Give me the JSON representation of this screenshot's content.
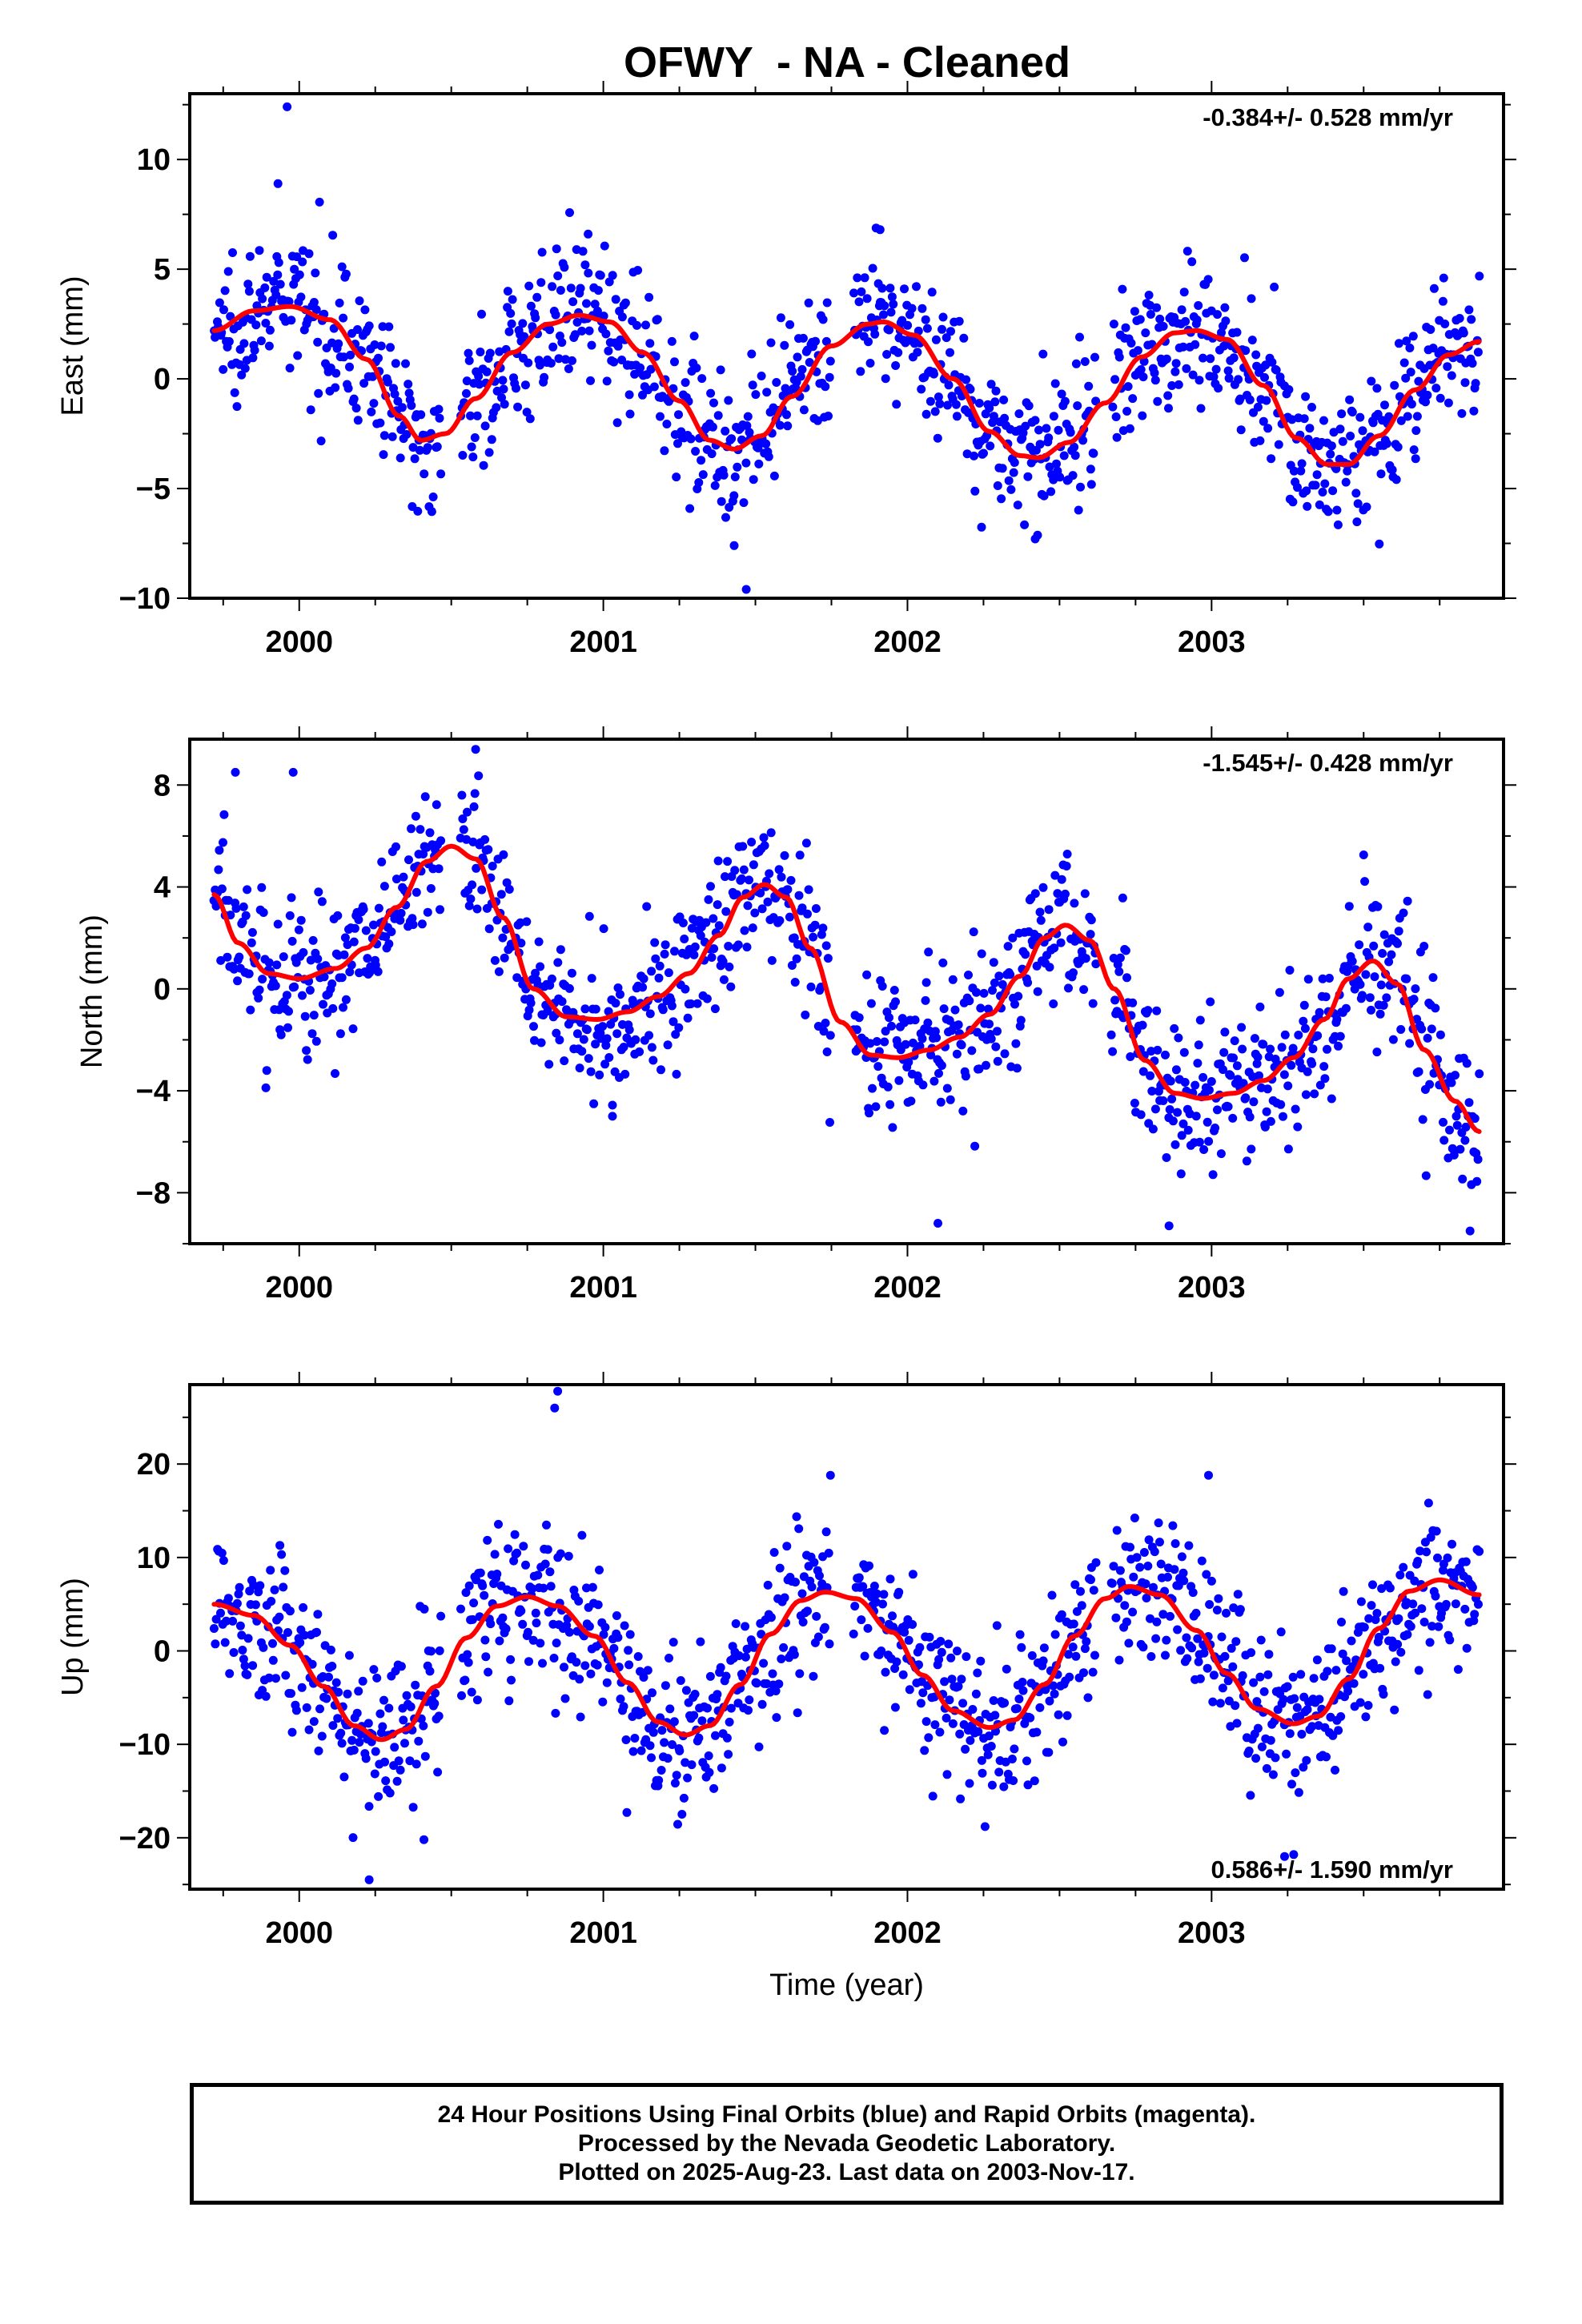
{
  "title": "OFWY  - NA - Cleaned",
  "colors": {
    "points": "#0000ff",
    "fit": "#ff0000",
    "axes": "#000000"
  },
  "chart_data": [
    {
      "type": "scatter",
      "panel": "East",
      "ylabel": "East (mm)",
      "xlabel": "",
      "ylim": [
        -10,
        13
      ],
      "xlim": [
        1999.64,
        2003.96
      ],
      "yticks": [
        10,
        5,
        0,
        -5,
        -10
      ],
      "yticklabels": [
        "10",
        "5",
        "0",
        "−5",
        "−10"
      ],
      "xticks": [
        2000,
        2001,
        2002,
        2003
      ],
      "xticklabels": [
        "2000",
        "2001",
        "2002",
        "2003"
      ],
      "rate_label": "-0.384+/- 0.528 mm/yr",
      "rate_position": "top-right",
      "grid": false,
      "series": [
        {
          "kind": "points",
          "range": [
            1999.72,
            2003.88
          ],
          "gaps": [
            [
              2000.47,
              2000.53
            ],
            [
              2001.75,
              2001.82
            ],
            [
              2002.62,
              2002.67
            ]
          ],
          "noise_sd": 1.6,
          "count": 1150,
          "outliers": [
            [
              1999.96,
              12.4
            ],
            [
              1999.93,
              8.9
            ],
            [
              2001.47,
              -9.6
            ],
            [
              2001.43,
              -7.6
            ],
            [
              2000.95,
              6.6
            ],
            [
              2001.91,
              6.8
            ],
            [
              2002.42,
              -7.3
            ]
          ]
        },
        {
          "kind": "fit",
          "x_start": 1999.72,
          "x_end": 2003.88,
          "points": [
            [
              1999.72,
              2.2
            ],
            [
              1999.85,
              3.1
            ],
            [
              1999.97,
              3.3
            ],
            [
              2000.1,
              2.7
            ],
            [
              2000.22,
              0.9
            ],
            [
              2000.33,
              -1.7
            ],
            [
              2000.4,
              -2.8
            ],
            [
              2000.48,
              -2.5
            ],
            [
              2000.58,
              -0.9
            ],
            [
              2000.7,
              1.2
            ],
            [
              2000.82,
              2.5
            ],
            [
              2000.92,
              2.9
            ],
            [
              2001.02,
              2.6
            ],
            [
              2001.13,
              1.2
            ],
            [
              2001.25,
              -1.0
            ],
            [
              2001.35,
              -2.8
            ],
            [
              2001.43,
              -3.2
            ],
            [
              2001.52,
              -2.6
            ],
            [
              2001.62,
              -0.8
            ],
            [
              2001.75,
              1.5
            ],
            [
              2001.87,
              2.5
            ],
            [
              2001.92,
              2.6
            ],
            [
              2002.02,
              2.0
            ],
            [
              2002.15,
              0.0
            ],
            [
              2002.27,
              -2.4
            ],
            [
              2002.37,
              -3.5
            ],
            [
              2002.43,
              -3.6
            ],
            [
              2002.53,
              -2.9
            ],
            [
              2002.65,
              -1.1
            ],
            [
              2002.77,
              1.0
            ],
            [
              2002.88,
              2.1
            ],
            [
              2002.95,
              2.2
            ],
            [
              2003.05,
              1.8
            ],
            [
              2003.17,
              -0.3
            ],
            [
              2003.28,
              -2.7
            ],
            [
              2003.38,
              -3.9
            ],
            [
              2003.45,
              -3.9
            ],
            [
              2003.55,
              -2.6
            ],
            [
              2003.67,
              -0.5
            ],
            [
              2003.78,
              1.1
            ],
            [
              2003.88,
              1.7
            ]
          ]
        }
      ]
    },
    {
      "type": "scatter",
      "panel": "North",
      "ylabel": "North (mm)",
      "xlabel": "",
      "ylim": [
        -10,
        9.8
      ],
      "xlim": [
        1999.64,
        2003.96
      ],
      "yticks": [
        8,
        4,
        0,
        -4,
        -8
      ],
      "yticklabels": [
        "8",
        "4",
        "0",
        "−4",
        "−8"
      ],
      "xticks": [
        2000,
        2001,
        2002,
        2003
      ],
      "xticklabels": [
        "2000",
        "2001",
        "2002",
        "2003"
      ],
      "rate_label": "-1.545+/- 0.428 mm/yr",
      "rate_position": "top-right",
      "grid": false,
      "series": [
        {
          "kind": "points",
          "range": [
            1999.72,
            2003.88
          ],
          "gaps": [
            [
              2000.47,
              2000.53
            ],
            [
              2001.75,
              2001.82
            ],
            [
              2002.62,
              2002.67
            ]
          ],
          "noise_sd": 1.5,
          "count": 1150,
          "outliers": [
            [
              2000.58,
              9.4
            ],
            [
              1999.79,
              8.5
            ],
            [
              1999.98,
              8.5
            ],
            [
              2002.1,
              -9.2
            ],
            [
              2003.85,
              -9.5
            ],
            [
              2002.86,
              -9.3
            ],
            [
              2001.03,
              -5.0
            ]
          ]
        },
        {
          "kind": "fit",
          "x_start": 1999.72,
          "x_end": 2003.88,
          "points": [
            [
              1999.72,
              3.7
            ],
            [
              1999.8,
              1.8
            ],
            [
              1999.9,
              0.6
            ],
            [
              2000.0,
              0.4
            ],
            [
              2000.12,
              0.8
            ],
            [
              2000.22,
              1.6
            ],
            [
              2000.32,
              3.2
            ],
            [
              2000.42,
              5.0
            ],
            [
              2000.5,
              5.6
            ],
            [
              2000.58,
              5.1
            ],
            [
              2000.67,
              2.8
            ],
            [
              2000.77,
              0.0
            ],
            [
              2000.88,
              -1.1
            ],
            [
              2000.98,
              -1.2
            ],
            [
              2001.08,
              -0.9
            ],
            [
              2001.18,
              -0.3
            ],
            [
              2001.28,
              0.6
            ],
            [
              2001.38,
              2.1
            ],
            [
              2001.46,
              3.6
            ],
            [
              2001.53,
              4.1
            ],
            [
              2001.6,
              3.6
            ],
            [
              2001.68,
              1.6
            ],
            [
              2001.78,
              -1.3
            ],
            [
              2001.88,
              -2.6
            ],
            [
              2001.97,
              -2.7
            ],
            [
              2002.07,
              -2.4
            ],
            [
              2002.17,
              -1.9
            ],
            [
              2002.27,
              -1.0
            ],
            [
              2002.37,
              0.5
            ],
            [
              2002.45,
              2.0
            ],
            [
              2002.52,
              2.5
            ],
            [
              2002.6,
              1.9
            ],
            [
              2002.68,
              0.0
            ],
            [
              2002.78,
              -2.8
            ],
            [
              2002.88,
              -4.1
            ],
            [
              2002.97,
              -4.3
            ],
            [
              2003.07,
              -4.1
            ],
            [
              2003.17,
              -3.6
            ],
            [
              2003.27,
              -2.7
            ],
            [
              2003.37,
              -1.2
            ],
            [
              2003.45,
              0.4
            ],
            [
              2003.53,
              1.1
            ],
            [
              2003.61,
              0.2
            ],
            [
              2003.7,
              -2.4
            ],
            [
              2003.8,
              -4.4
            ],
            [
              2003.88,
              -5.6
            ]
          ]
        }
      ]
    },
    {
      "type": "scatter",
      "panel": "Up",
      "ylabel": "Up (mm)",
      "xlabel": "Time (year)",
      "ylim": [
        -25.5,
        28.5
      ],
      "xlim": [
        1999.64,
        2003.96
      ],
      "yticks": [
        20,
        10,
        0,
        -10,
        -20
      ],
      "yticklabels": [
        "20",
        "10",
        "0",
        "−10",
        "−20"
      ],
      "xticks": [
        2000,
        2001,
        2002,
        2003
      ],
      "xticklabels": [
        "2000",
        "2001",
        "2002",
        "2003"
      ],
      "rate_label": "0.586+/- 1.590 mm/yr",
      "rate_position": "bottom-right",
      "grid": false,
      "series": [
        {
          "kind": "points",
          "range": [
            1999.72,
            2003.88
          ],
          "gaps": [
            [
              2000.47,
              2000.53
            ],
            [
              2001.75,
              2001.82
            ],
            [
              2002.62,
              2002.67
            ]
          ],
          "noise_sd": 4.2,
          "count": 1150,
          "outliers": [
            [
              2000.85,
              27.8
            ],
            [
              2000.84,
              26.0
            ],
            [
              2000.23,
              -24.5
            ],
            [
              2000.41,
              -20.2
            ],
            [
              2003.24,
              -22.0
            ],
            [
              2003.27,
              -21.8
            ],
            [
              2002.99,
              18.8
            ]
          ]
        },
        {
          "kind": "fit",
          "x_start": 1999.72,
          "x_end": 2003.88,
          "points": [
            [
              1999.72,
              5.0
            ],
            [
              1999.85,
              3.8
            ],
            [
              1999.97,
              0.6
            ],
            [
              2000.08,
              -3.8
            ],
            [
              2000.18,
              -8.0
            ],
            [
              2000.27,
              -9.5
            ],
            [
              2000.35,
              -8.4
            ],
            [
              2000.45,
              -3.8
            ],
            [
              2000.55,
              1.4
            ],
            [
              2000.65,
              4.8
            ],
            [
              2000.75,
              5.8
            ],
            [
              2000.85,
              4.8
            ],
            [
              2000.97,
              1.6
            ],
            [
              2001.08,
              -3.4
            ],
            [
              2001.18,
              -7.6
            ],
            [
              2001.27,
              -9.0
            ],
            [
              2001.35,
              -8.0
            ],
            [
              2001.45,
              -3.6
            ],
            [
              2001.55,
              1.8
            ],
            [
              2001.65,
              5.4
            ],
            [
              2001.73,
              6.3
            ],
            [
              2001.83,
              5.6
            ],
            [
              2001.95,
              2.0
            ],
            [
              2002.05,
              -2.6
            ],
            [
              2002.15,
              -6.4
            ],
            [
              2002.27,
              -8.2
            ],
            [
              2002.35,
              -7.4
            ],
            [
              2002.45,
              -3.6
            ],
            [
              2002.55,
              1.6
            ],
            [
              2002.65,
              5.6
            ],
            [
              2002.73,
              6.9
            ],
            [
              2002.83,
              6.0
            ],
            [
              2002.95,
              2.2
            ],
            [
              2003.05,
              -2.4
            ],
            [
              2003.15,
              -6.2
            ],
            [
              2003.27,
              -7.8
            ],
            [
              2003.35,
              -7.0
            ],
            [
              2003.45,
              -3.0
            ],
            [
              2003.55,
              2.4
            ],
            [
              2003.65,
              6.4
            ],
            [
              2003.75,
              7.6
            ],
            [
              2003.88,
              6.0
            ]
          ]
        }
      ]
    }
  ],
  "footer": {
    "line1": "24 Hour Positions Using Final Orbits (blue) and Rapid Orbits (magenta).",
    "line2": "Processed by the Nevada Geodetic Laboratory.",
    "line3": "Plotted on 2025-Aug-23. Last data on 2003-Nov-17."
  }
}
